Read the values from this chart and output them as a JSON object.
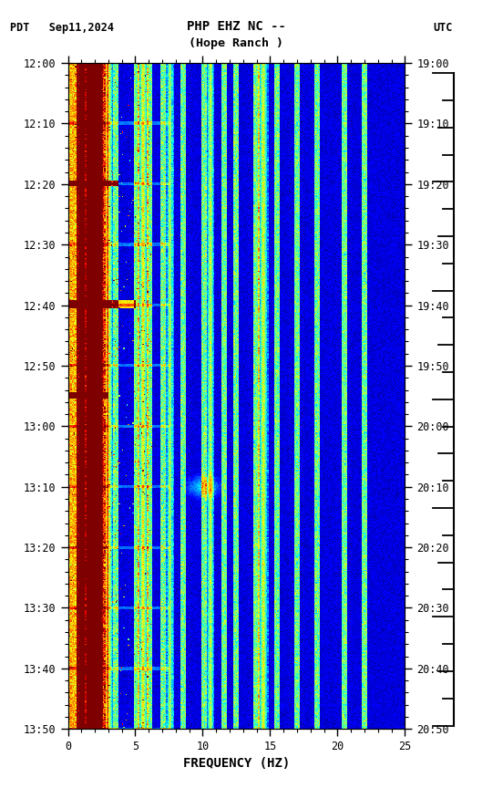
{
  "title_line1": "PHP EHZ NC --",
  "title_line2": "(Hope Ranch )",
  "left_label": "PDT   Sep11,2024",
  "right_label": "UTC",
  "xlabel": "FREQUENCY (HZ)",
  "freq_min": 0,
  "freq_max": 25,
  "pdt_ticks": [
    "12:00",
    "12:10",
    "12:20",
    "12:30",
    "12:40",
    "12:50",
    "13:00",
    "13:10",
    "13:20",
    "13:30",
    "13:40",
    "13:50"
  ],
  "utc_ticks": [
    "19:00",
    "19:10",
    "19:20",
    "19:30",
    "19:40",
    "19:50",
    "20:00",
    "20:10",
    "20:20",
    "20:30",
    "20:40",
    "20:50"
  ],
  "freq_ticks": [
    0,
    5,
    10,
    15,
    20,
    25
  ],
  "background_color": "#ffffff",
  "spectrogram_cmap": "jet",
  "n_time": 660,
  "n_freq": 300,
  "figsize": [
    5.52,
    8.64
  ],
  "dpi": 100,
  "seed": 12345
}
